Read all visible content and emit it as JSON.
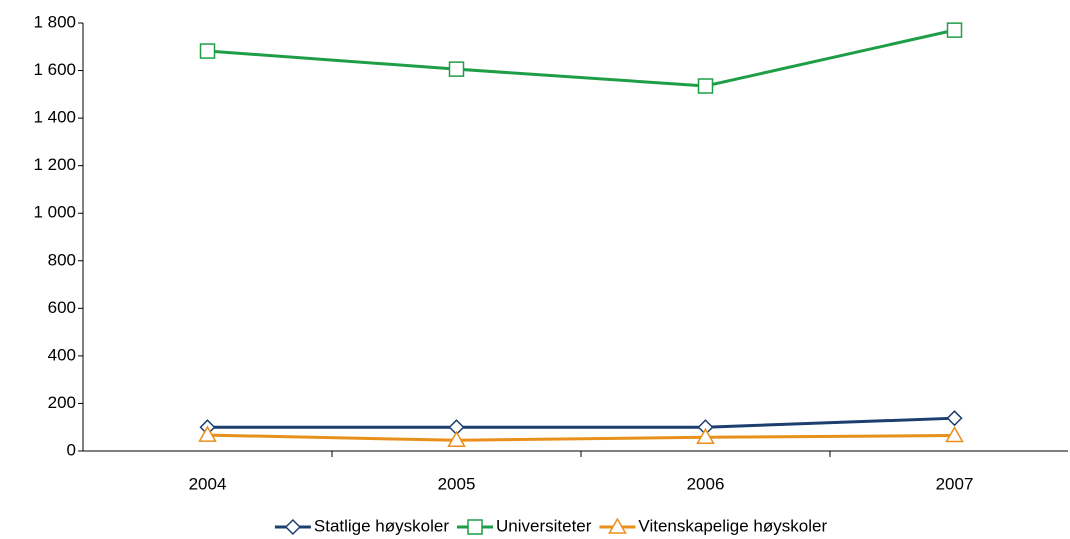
{
  "chart_data": {
    "type": "line",
    "categories": [
      "2004",
      "2005",
      "2006",
      "2007"
    ],
    "series": [
      {
        "name": "Statlige høyskoler",
        "color": "#1c3f6e",
        "marker": "diamond",
        "values": [
          100,
          100,
          100,
          138
        ]
      },
      {
        "name": "Universiteter",
        "color": "#1f9e48",
        "marker": "square",
        "values": [
          1682,
          1606,
          1535,
          1770
        ]
      },
      {
        "name": "Vitenskapelige høyskoler",
        "color": "#e8901a",
        "marker": "triangle",
        "values": [
          67,
          45,
          58,
          65
        ]
      }
    ],
    "ylim": [
      0,
      1800
    ],
    "yticks": [
      0,
      200,
      400,
      600,
      800,
      {
        "value": 1000,
        "label": "1 000"
      },
      {
        "value": 1200,
        "label": "1 200"
      },
      {
        "value": 1400,
        "label": "1 400"
      },
      {
        "value": 1600,
        "label": "1 600"
      },
      {
        "value": 1800,
        "label": "1 800"
      }
    ],
    "grid": false,
    "legend": "bottom"
  }
}
